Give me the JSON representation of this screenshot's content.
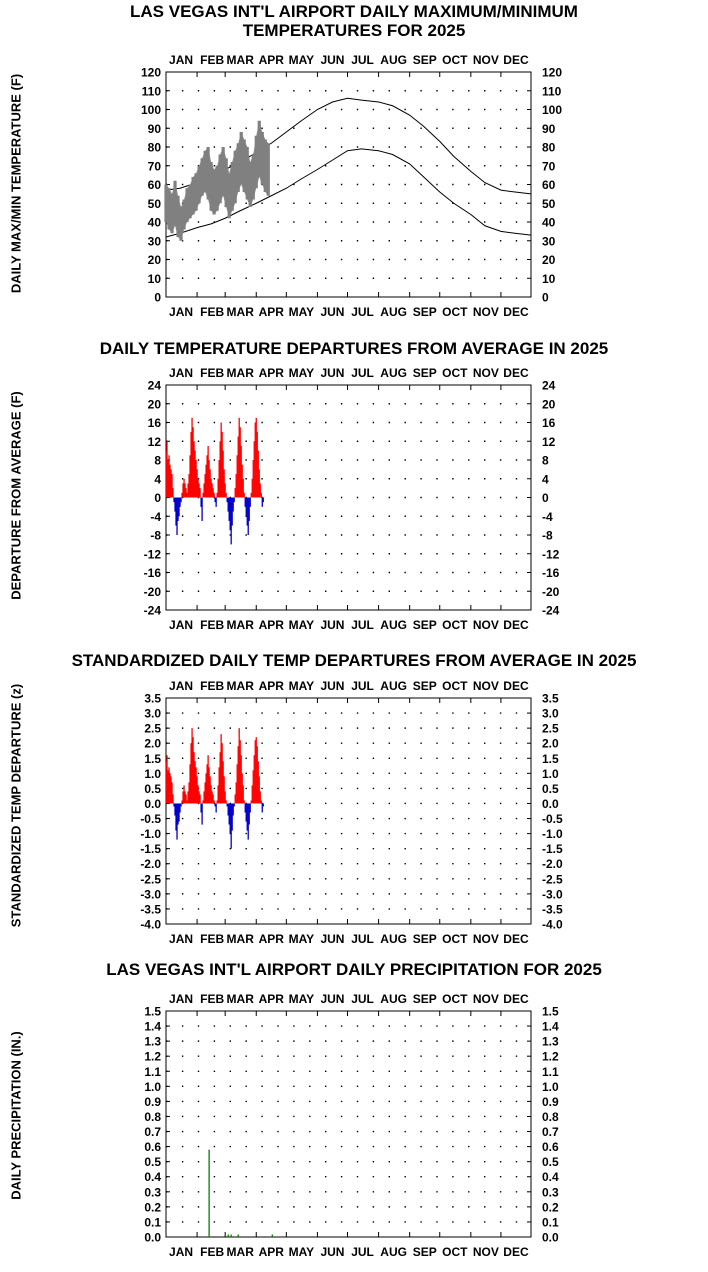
{
  "months": [
    "JAN",
    "FEB",
    "MAR",
    "APR",
    "MAY",
    "JUN",
    "JUL",
    "AUG",
    "SEP",
    "OCT",
    "NOV",
    "DEC"
  ],
  "chart_data": [
    {
      "type": "line",
      "title": "LAS VEGAS INT'L AIRPORT DAILY MAXIMUM/MINIMUM TEMPERATURES FOR 2025",
      "ylabel": "DAILY MAX/MIN TEMPERATURE (F)",
      "ylim": [
        0,
        120
      ],
      "yticks": [
        0,
        10,
        20,
        30,
        40,
        50,
        60,
        70,
        80,
        90,
        100,
        110,
        120
      ],
      "grid": true,
      "normals": {
        "x_day": [
          1,
          15,
          32,
          46,
          60,
          75,
          91,
          106,
          121,
          136,
          152,
          167,
          182,
          196,
          213,
          227,
          244,
          258,
          274,
          288,
          305,
          319,
          335,
          349,
          365
        ],
        "max": [
          57,
          58,
          61,
          64,
          68,
          72,
          77,
          82,
          88,
          94,
          100,
          104,
          106,
          105,
          104,
          102,
          97,
          91,
          83,
          75,
          67,
          61,
          57,
          56,
          55
        ],
        "min": [
          32,
          34,
          37,
          39,
          42,
          46,
          50,
          54,
          58,
          63,
          68,
          73,
          78,
          79,
          78,
          76,
          71,
          64,
          56,
          50,
          44,
          38,
          35,
          34,
          33
        ]
      },
      "series": [
        {
          "name": "observed_range",
          "x_day": [
            1,
            4,
            7,
            10,
            13,
            16,
            19,
            22,
            25,
            28,
            31,
            34,
            37,
            40,
            43,
            46,
            49,
            52,
            55,
            58,
            61,
            64,
            67,
            70,
            73,
            76,
            79,
            82,
            85,
            88,
            91,
            94,
            97,
            100,
            103
          ],
          "max": [
            60,
            58,
            55,
            62,
            54,
            48,
            52,
            58,
            60,
            64,
            66,
            70,
            74,
            78,
            80,
            72,
            68,
            70,
            76,
            80,
            74,
            66,
            72,
            78,
            82,
            88,
            84,
            80,
            72,
            76,
            86,
            94,
            88,
            84,
            82
          ],
          "min": [
            40,
            36,
            34,
            38,
            32,
            30,
            36,
            40,
            42,
            44,
            46,
            50,
            54,
            56,
            52,
            46,
            44,
            46,
            50,
            54,
            48,
            42,
            46,
            50,
            56,
            60,
            56,
            52,
            48,
            52,
            58,
            64,
            60,
            56,
            54
          ]
        }
      ]
    },
    {
      "type": "bar",
      "title": "DAILY TEMPERATURE DEPARTURES FROM AVERAGE IN 2025",
      "ylabel": "DEPARTURE FROM AVERAGE (F)",
      "ylim": [
        -24,
        24
      ],
      "yticks": [
        24,
        20,
        16,
        12,
        8,
        4,
        0,
        -4,
        -8,
        -12,
        -16,
        -20,
        -24
      ],
      "grid": true,
      "x_day_start": 1,
      "values": [
        10,
        12,
        8,
        9,
        7,
        6,
        5,
        2,
        -1,
        -3,
        -6,
        -8,
        -5,
        -4,
        -2,
        -1,
        1,
        3,
        4,
        3,
        2,
        1,
        3,
        5,
        9,
        14,
        17,
        15,
        12,
        10,
        8,
        6,
        4,
        3,
        2,
        -2,
        -5,
        1,
        3,
        5,
        7,
        9,
        11,
        8,
        6,
        4,
        3,
        2,
        1,
        -1,
        -2,
        1,
        4,
        8,
        12,
        16,
        14,
        10,
        6,
        3,
        1,
        -1,
        -3,
        -5,
        -7,
        -10,
        -6,
        -3,
        -1,
        2,
        5,
        9,
        13,
        17,
        15,
        11,
        7,
        4,
        1,
        -2,
        -4,
        -6,
        -8,
        -5,
        -2,
        1,
        4,
        8,
        12,
        16,
        17,
        14,
        10,
        6,
        3,
        1,
        -2,
        -1
      ]
    },
    {
      "type": "bar",
      "title": "STANDARDIZED DAILY TEMP DEPARTURES FROM AVERAGE IN 2025",
      "ylabel": "STANDARDIZED TEMP DEPARTURE (z)",
      "ylim": [
        -4.0,
        3.5
      ],
      "yticks": [
        "3.5",
        "3.0",
        "2.5",
        "2.0",
        "1.5",
        "1.0",
        "0.5",
        "0.0",
        "-0.5",
        "-1.0",
        "-1.5",
        "-2.0",
        "-2.5",
        "-3.0",
        "-3.5",
        "-4.0"
      ],
      "grid": true,
      "x_day_start": 1,
      "values": [
        1.4,
        1.6,
        1.1,
        1.2,
        1.0,
        0.9,
        0.7,
        0.3,
        -0.1,
        -0.4,
        -0.9,
        -1.2,
        -0.7,
        -0.6,
        -0.3,
        -0.1,
        0.1,
        0.4,
        0.6,
        0.4,
        0.3,
        0.1,
        0.4,
        0.7,
        1.3,
        2.0,
        2.5,
        2.2,
        1.7,
        1.4,
        1.2,
        0.9,
        0.6,
        0.4,
        0.3,
        -0.3,
        -0.7,
        0.1,
        0.4,
        0.7,
        1.0,
        1.3,
        1.6,
        1.2,
        0.9,
        0.6,
        0.4,
        0.3,
        0.1,
        -0.1,
        -0.3,
        0.1,
        0.6,
        1.2,
        1.7,
        2.3,
        2.0,
        1.4,
        0.9,
        0.4,
        0.1,
        -0.1,
        -0.4,
        -0.7,
        -1.0,
        -1.5,
        -0.9,
        -0.4,
        -0.1,
        0.3,
        0.7,
        1.3,
        1.9,
        2.5,
        2.1,
        1.6,
        1.0,
        0.6,
        0.1,
        -0.3,
        -0.6,
        -0.9,
        -1.2,
        -0.7,
        -0.3,
        0.1,
        0.6,
        1.1,
        1.6,
        2.1,
        2.2,
        1.9,
        1.4,
        0.9,
        0.4,
        0.1,
        -0.3,
        -0.1
      ]
    },
    {
      "type": "bar",
      "title": "LAS VEGAS INT'L AIRPORT DAILY PRECIPITATION FOR 2025",
      "ylabel": "DAILY PRECIPITATION (IN.)",
      "ylim": [
        0.0,
        1.5
      ],
      "yticks": [
        "1.5",
        "1.4",
        "1.3",
        "1.2",
        "1.1",
        "1.0",
        "0.9",
        "0.8",
        "0.7",
        "0.6",
        "0.5",
        "0.4",
        "0.3",
        "0.2",
        "0.1",
        "0.0"
      ],
      "grid": true,
      "points": [
        {
          "x_day": 44,
          "value": 0.58
        },
        {
          "x_day": 63,
          "value": 0.01
        },
        {
          "x_day": 66,
          "value": 0.01
        },
        {
          "x_day": 73,
          "value": 0.01
        },
        {
          "x_day": 107,
          "value": 0.01
        }
      ]
    }
  ],
  "colors": {
    "positive": "#ff0000",
    "negative": "#0000cc",
    "observed": "#808080",
    "precip": "#008000",
    "normal": "#000000"
  }
}
